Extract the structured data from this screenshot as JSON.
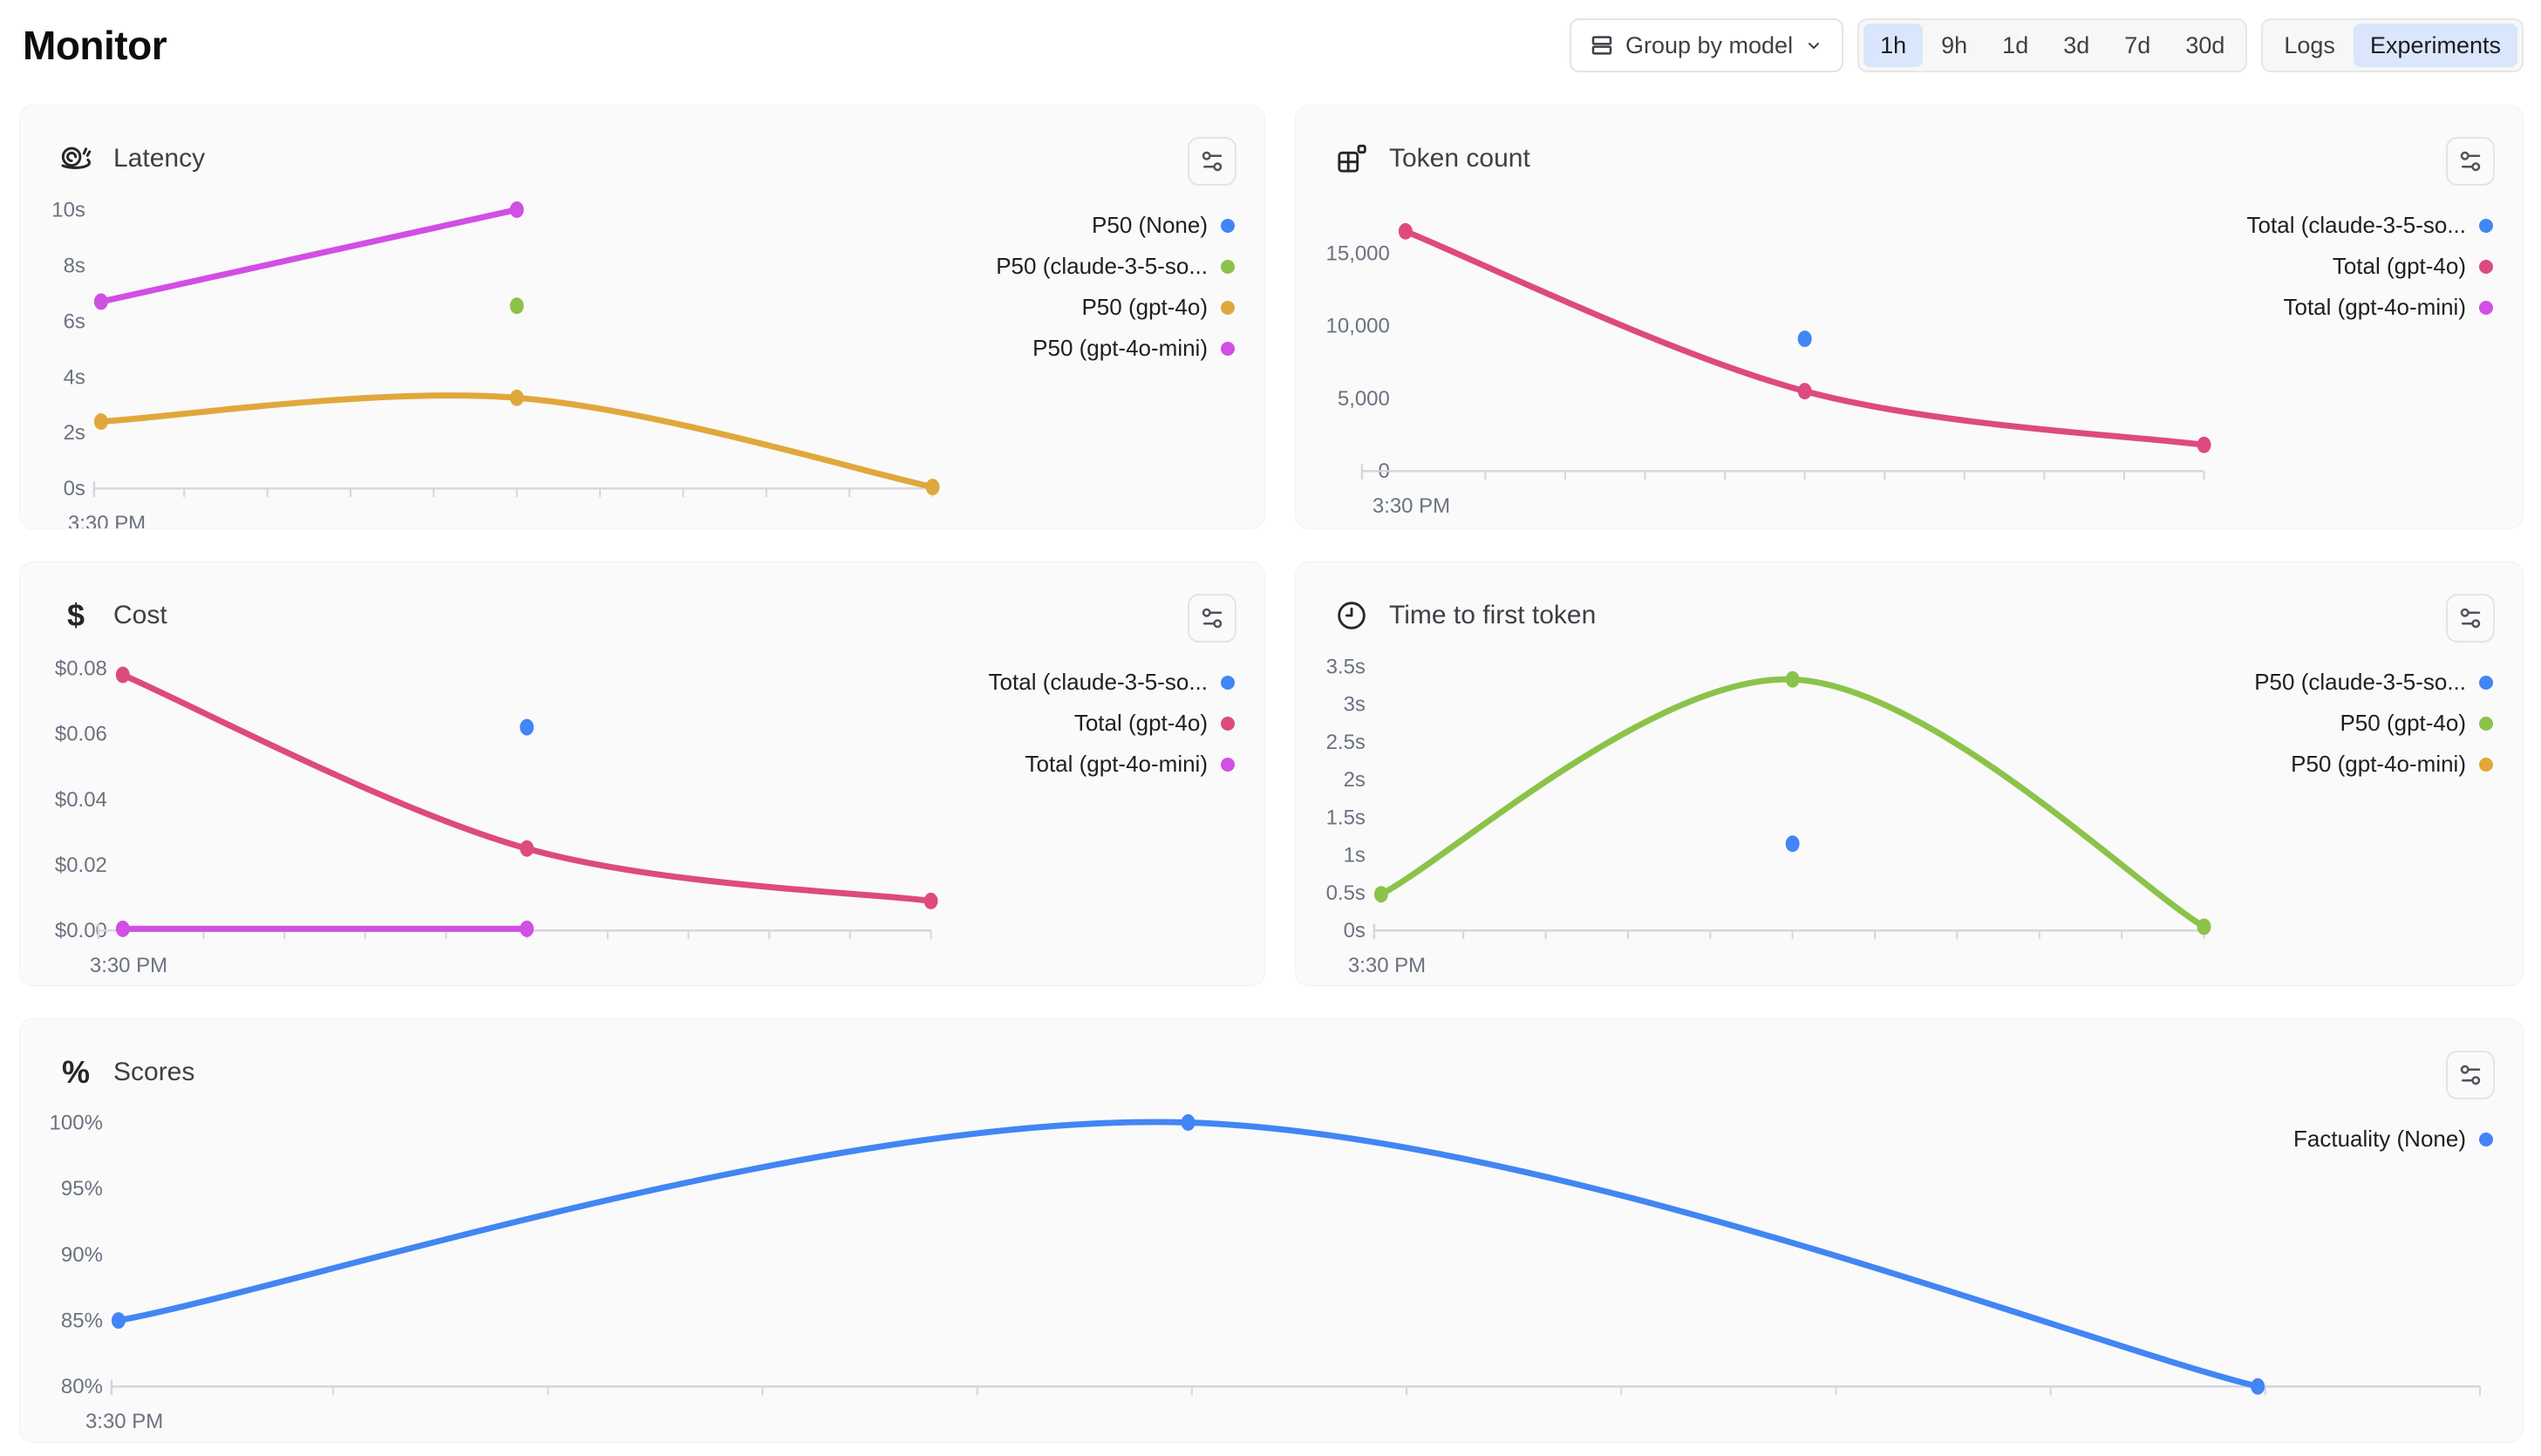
{
  "page_title": "Monitor",
  "toolbar": {
    "group_by": {
      "label": "Group by model"
    },
    "time_ranges": {
      "options": [
        "1h",
        "9h",
        "1d",
        "3d",
        "7d",
        "30d"
      ],
      "selected": "1h"
    },
    "view_toggle": {
      "options": [
        "Logs",
        "Experiments"
      ],
      "selected": "Experiments"
    }
  },
  "colors": {
    "blue": "#4285f4",
    "green": "#8bc34a",
    "amber": "#e0a83c",
    "magenta": "#d14fe3",
    "pink": "#dd4a80",
    "axis": "#d6d6db"
  },
  "cards": [
    {
      "id": "latency",
      "title": "Latency",
      "icon": "snail-icon",
      "chart_data": {
        "type": "line",
        "unit": "seconds",
        "ylim": [
          0,
          10
        ],
        "x_tick_labels": [
          "3:30 PM"
        ],
        "y_ticks": [
          {
            "label": "0s",
            "value": 0
          },
          {
            "label": "2s",
            "value": 2
          },
          {
            "label": "4s",
            "value": 4
          },
          {
            "label": "6s",
            "value": 6
          },
          {
            "label": "8s",
            "value": 8
          },
          {
            "label": "10s",
            "value": 10
          }
        ],
        "series": [
          {
            "name": "P50 (None)",
            "color": "#4285f4",
            "points": []
          },
          {
            "name": "P50 (claude-3-5-so...",
            "color": "#8bc34a",
            "points": [
              {
                "x": 0.5,
                "y": 6.55
              }
            ]
          },
          {
            "name": "P50 (gpt-4o)",
            "color": "#e0a83c",
            "points": [
              {
                "x": 0,
                "y": 2.4
              },
              {
                "x": 0.5,
                "y": 3.25
              },
              {
                "x": 1,
                "y": 0.05
              }
            ]
          },
          {
            "name": "P50 (gpt-4o-mini)",
            "color": "#d14fe3",
            "points": [
              {
                "x": 0,
                "y": 6.7
              },
              {
                "x": 0.5,
                "y": 10
              }
            ]
          }
        ]
      }
    },
    {
      "id": "token-count",
      "title": "Token count",
      "icon": "blocks-icon",
      "chart_data": {
        "type": "line",
        "unit": "tokens",
        "ylim": [
          0,
          17500
        ],
        "x_tick_labels": [
          "3:30 PM"
        ],
        "y_ticks": [
          {
            "label": "0",
            "value": 0
          },
          {
            "label": "5,000",
            "value": 5000
          },
          {
            "label": "10,000",
            "value": 10000
          },
          {
            "label": "15,000",
            "value": 15000
          }
        ],
        "series": [
          {
            "name": "Total (claude-3-5-so...",
            "color": "#4285f4",
            "points": [
              {
                "x": 0.5,
                "y": 9100
              }
            ]
          },
          {
            "name": "Total (gpt-4o)",
            "color": "#dd4a80",
            "points": [
              {
                "x": 0,
                "y": 16500
              },
              {
                "x": 0.5,
                "y": 5500
              },
              {
                "x": 1,
                "y": 1800
              }
            ]
          },
          {
            "name": "Total (gpt-4o-mini)",
            "color": "#d14fe3",
            "points": []
          }
        ]
      }
    },
    {
      "id": "cost",
      "title": "Cost",
      "icon": "dollar-icon",
      "chart_data": {
        "type": "line",
        "unit": "USD",
        "ylim": [
          0,
          0.08
        ],
        "x_tick_labels": [
          "3:30 PM"
        ],
        "y_ticks": [
          {
            "label": "$0.00",
            "value": 0
          },
          {
            "label": "$0.02",
            "value": 0.02
          },
          {
            "label": "$0.04",
            "value": 0.04
          },
          {
            "label": "$0.06",
            "value": 0.06
          },
          {
            "label": "$0.08",
            "value": 0.08
          }
        ],
        "series": [
          {
            "name": "Total (claude-3-5-so...",
            "color": "#4285f4",
            "points": [
              {
                "x": 0.5,
                "y": 0.062
              }
            ]
          },
          {
            "name": "Total (gpt-4o)",
            "color": "#dd4a80",
            "points": [
              {
                "x": 0,
                "y": 0.078
              },
              {
                "x": 0.5,
                "y": 0.025
              },
              {
                "x": 1,
                "y": 0.009
              }
            ]
          },
          {
            "name": "Total (gpt-4o-mini)",
            "color": "#d14fe3",
            "points": [
              {
                "x": 0,
                "y": 0.0005
              },
              {
                "x": 0.5,
                "y": 0.0005
              }
            ]
          }
        ]
      }
    },
    {
      "id": "ttft",
      "title": "Time to first token",
      "icon": "clock-icon",
      "chart_data": {
        "type": "line",
        "unit": "seconds",
        "ylim": [
          0,
          3.5
        ],
        "x_tick_labels": [
          "3:30 PM"
        ],
        "y_ticks": [
          {
            "label": "0s",
            "value": 0
          },
          {
            "label": "0.5s",
            "value": 0.5
          },
          {
            "label": "1s",
            "value": 1
          },
          {
            "label": "1.5s",
            "value": 1.5
          },
          {
            "label": "2s",
            "value": 2
          },
          {
            "label": "2.5s",
            "value": 2.5
          },
          {
            "label": "3s",
            "value": 3
          },
          {
            "label": "3.5s",
            "value": 3.5
          }
        ],
        "series": [
          {
            "name": "P50 (claude-3-5-so...",
            "color": "#4285f4",
            "points": [
              {
                "x": 0.5,
                "y": 1.15
              }
            ]
          },
          {
            "name": "P50 (gpt-4o)",
            "color": "#8bc34a",
            "points": [
              {
                "x": 0,
                "y": 0.48
              },
              {
                "x": 0.5,
                "y": 3.33
              },
              {
                "x": 1,
                "y": 0.05
              }
            ]
          },
          {
            "name": "P50 (gpt-4o-mini)",
            "color": "#e0a83c",
            "points": []
          }
        ]
      }
    },
    {
      "id": "scores",
      "title": "Scores",
      "icon": "percent-icon",
      "chart_data": {
        "type": "line",
        "unit": "percent",
        "ylim": [
          80,
          100
        ],
        "x_tick_labels": [
          "3:30 PM"
        ],
        "y_ticks": [
          {
            "label": "80%",
            "value": 80
          },
          {
            "label": "85%",
            "value": 85
          },
          {
            "label": "90%",
            "value": 90
          },
          {
            "label": "95%",
            "value": 95
          },
          {
            "label": "100%",
            "value": 100
          }
        ],
        "series": [
          {
            "name": "Factuality (None)",
            "color": "#4285f4",
            "points": [
              {
                "x": 0,
                "y": 85
              },
              {
                "x": 0.5,
                "y": 100
              },
              {
                "x": 1,
                "y": 80
              }
            ]
          }
        ]
      }
    }
  ]
}
